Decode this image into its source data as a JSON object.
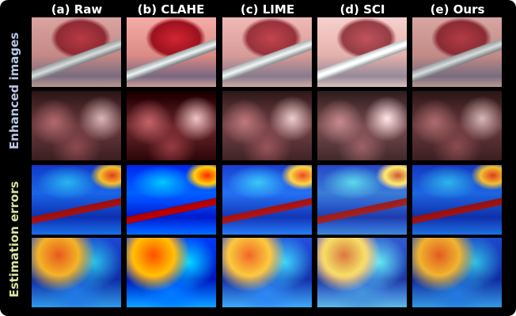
{
  "columns": [
    "(a) Raw",
    "(b) CLAHE",
    "(c) LIME",
    "(d) SCI",
    "(e) Ours"
  ],
  "row_groups": [
    "Enhanced images",
    "Estimation errors"
  ]
}
